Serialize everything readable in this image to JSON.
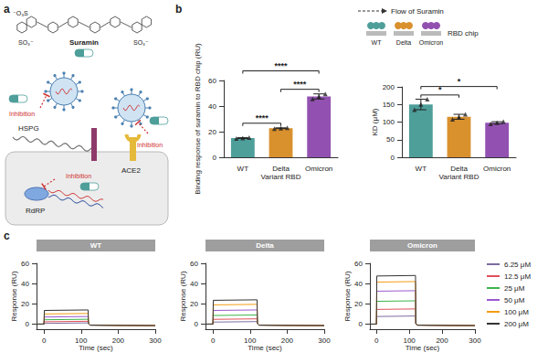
{
  "diagram": {
    "panel_labels": [
      "a",
      "b",
      "c"
    ],
    "structure_labels": [
      "⁻O₃S",
      "SO₃⁻",
      "SO₃⁻"
    ],
    "drug": "Suramin",
    "labels": {
      "hspg": "HSPG",
      "ace2": "ACE2",
      "rdrp": "RdRP"
    },
    "inhibition": [
      "Inhibition",
      "Inhibition",
      "Inhibition"
    ],
    "flow": "Flow of Suramin",
    "chip": "RBD chip",
    "chip_labels": [
      "WT",
      "Delta",
      "Omicron"
    ]
  },
  "chart_data": [
    {
      "type": "bar",
      "categories": [
        "WT",
        "Delta",
        "Omicron"
      ],
      "values": [
        15,
        22.7,
        47.5
      ],
      "errors": [
        0.3,
        0.3,
        2
      ],
      "points": [
        [
          14.7,
          15,
          15.3
        ],
        [
          22.4,
          22.7,
          23
        ],
        [
          45.5,
          47.5,
          49.5
        ]
      ],
      "colors": [
        "#4e9e9a",
        "#d9912e",
        "#9251b0"
      ],
      "marker": "triangle",
      "x_label": "Variant RBD",
      "y_label": "Binding response of suramin to RBD chip (RU)",
      "ylim": [
        0,
        60
      ],
      "yticks": [
        0,
        20,
        40,
        60
      ],
      "annotations": [
        {
          "from": "WT",
          "to": "Omicron",
          "text": "****"
        },
        {
          "from": "WT",
          "to": "Delta",
          "text": "****"
        },
        {
          "from": "Delta",
          "to": "Omicron",
          "text": "****"
        }
      ]
    },
    {
      "type": "bar",
      "categories": [
        "WT",
        "Delta",
        "Omicron"
      ],
      "values": [
        150,
        115,
        98
      ],
      "errors": [
        15,
        7,
        3
      ],
      "points": [
        [
          135,
          150,
          165
        ],
        [
          108,
          115,
          122
        ],
        [
          95,
          98,
          101
        ]
      ],
      "colors": [
        "#4e9e9a",
        "#d9912e",
        "#9251b0"
      ],
      "marker": "triangle",
      "x_label": "Variant RBD",
      "y_label": "KD (μM)",
      "ylim": [
        0,
        200
      ],
      "yticks": [
        0,
        50,
        100,
        150,
        200
      ],
      "annotations": [
        {
          "from": "WT",
          "to": "Omicron",
          "text": "*"
        },
        {
          "from": "WT",
          "to": "Delta",
          "text": "*"
        }
      ]
    },
    {
      "type": "line",
      "title": "WT",
      "x_label": "Time (sec)",
      "y_label": "Response (RU)",
      "xlim": [
        -20,
        300
      ],
      "xticks": [
        0,
        100,
        200,
        300
      ],
      "ylim": [
        -5,
        60
      ],
      "yticks": [
        0,
        20,
        40,
        60
      ],
      "x": [
        -20,
        0,
        1,
        119,
        120,
        124,
        300
      ],
      "series": [
        {
          "name": "6.25 μM",
          "color": "#7d6e9e",
          "values": [
            0,
            0,
            0.7,
            1.2,
            0.5,
            -1,
            -1.5
          ]
        },
        {
          "name": "12.5 μM",
          "color": "#e0505a",
          "values": [
            0,
            0,
            2.3,
            2.8,
            0.5,
            -1,
            -1.5
          ]
        },
        {
          "name": "25 μM",
          "color": "#3cb44b",
          "values": [
            0,
            0,
            4.3,
            4.8,
            0.5,
            -1,
            -1.5
          ]
        },
        {
          "name": "50 μM",
          "color": "#9b59d0",
          "values": [
            0,
            0,
            7,
            7.5,
            0.5,
            -1,
            -1.5
          ]
        },
        {
          "name": "100 μM",
          "color": "#f39c12",
          "values": [
            0,
            0,
            10,
            10.5,
            0.5,
            -1,
            -1.5
          ]
        },
        {
          "name": "200 μM",
          "color": "#333333",
          "values": [
            0,
            0,
            13.5,
            14,
            0.5,
            -1,
            -1.5
          ]
        }
      ]
    },
    {
      "type": "line",
      "title": "Delta",
      "x_label": "Time (sec)",
      "y_label": "Response (RU)",
      "xlim": [
        -20,
        300
      ],
      "xticks": [
        0,
        100,
        200,
        300
      ],
      "ylim": [
        -5,
        60
      ],
      "yticks": [
        0,
        20,
        40,
        60
      ],
      "x": [
        -20,
        0,
        1,
        119,
        120,
        124,
        300
      ],
      "series": [
        {
          "name": "6.25 μM",
          "color": "#7d6e9e",
          "values": [
            0,
            0,
            2,
            2.5,
            0.5,
            -1,
            -1.5
          ]
        },
        {
          "name": "12.5 μM",
          "color": "#e0505a",
          "values": [
            0,
            0,
            4.7,
            5.2,
            0.5,
            -1,
            -1.5
          ]
        },
        {
          "name": "25 μM",
          "color": "#3cb44b",
          "values": [
            0,
            0,
            8.5,
            9,
            0.5,
            -1,
            -1.5
          ]
        },
        {
          "name": "50 μM",
          "color": "#9b59d0",
          "values": [
            0,
            0,
            13.5,
            14,
            0.5,
            -1,
            -1.5
          ]
        },
        {
          "name": "100 μM",
          "color": "#f39c12",
          "values": [
            0,
            0,
            19,
            19.5,
            0.5,
            -1,
            -1.5
          ]
        },
        {
          "name": "200 μM",
          "color": "#333333",
          "values": [
            0,
            0,
            23.5,
            24,
            0.5,
            -1,
            -1.5
          ]
        }
      ]
    },
    {
      "type": "line",
      "title": "Omicron",
      "x_label": "Time (sec)",
      "y_label": "Response (RU)",
      "xlim": [
        -20,
        300
      ],
      "xticks": [
        0,
        100,
        200,
        300
      ],
      "ylim": [
        -5,
        60
      ],
      "yticks": [
        0,
        20,
        40,
        60
      ],
      "x": [
        -20,
        0,
        1,
        119,
        120,
        124,
        300
      ],
      "legend": "right",
      "series": [
        {
          "name": "6.25 μM",
          "color": "#7d6e9e",
          "values": [
            0,
            0,
            7.5,
            8,
            0.5,
            -1,
            -1.5
          ]
        },
        {
          "name": "12.5 μM",
          "color": "#e0505a",
          "values": [
            0,
            0,
            14.5,
            15,
            0.5,
            -1,
            -1.5
          ]
        },
        {
          "name": "25 μM",
          "color": "#3cb44b",
          "values": [
            0,
            0,
            22.5,
            23,
            0.5,
            -1,
            -1.5
          ]
        },
        {
          "name": "50 μM",
          "color": "#9b59d0",
          "values": [
            0,
            0,
            32.5,
            33,
            0.5,
            -1,
            -1.5
          ]
        },
        {
          "name": "100 μM",
          "color": "#f39c12",
          "values": [
            0,
            0,
            41.5,
            42,
            0.5,
            -1,
            -1.5
          ]
        },
        {
          "name": "200 μM",
          "color": "#333333",
          "values": [
            0,
            0,
            47.5,
            48,
            0.5,
            -1,
            -1.5
          ]
        }
      ]
    }
  ]
}
